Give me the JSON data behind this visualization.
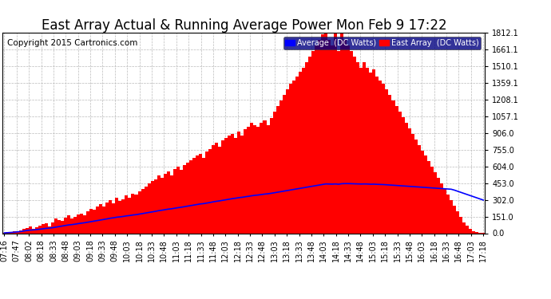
{
  "title": "East Array Actual & Running Average Power Mon Feb 9 17:22",
  "copyright": "Copyright 2015 Cartronics.com",
  "legend_labels": [
    "Average  (DC Watts)",
    "East Array  (DC Watts)"
  ],
  "legend_colors": [
    "#0000ff",
    "#ff0000"
  ],
  "legend_bg": "#000080",
  "ylabel_right_ticks": [
    0.0,
    151.0,
    302.0,
    453.0,
    604.0,
    755.0,
    906.0,
    1057.1,
    1208.1,
    1359.1,
    1510.1,
    1661.1,
    1812.1
  ],
  "ylim": [
    0.0,
    1812.1
  ],
  "bg_color": "#ffffff",
  "plot_bg_color": "#ffffff",
  "grid_color": "#bbbbbb",
  "bar_color": "#ff0000",
  "avg_color": "#0000ff",
  "x_tick_labels": [
    "07:16",
    "07:47",
    "08:02",
    "08:18",
    "08:33",
    "08:48",
    "09:03",
    "09:18",
    "09:33",
    "09:48",
    "10:03",
    "10:18",
    "10:33",
    "10:48",
    "11:03",
    "11:18",
    "11:33",
    "11:48",
    "12:03",
    "12:18",
    "12:33",
    "12:48",
    "13:03",
    "13:18",
    "13:33",
    "13:48",
    "14:03",
    "14:18",
    "14:33",
    "14:48",
    "15:03",
    "15:18",
    "15:33",
    "15:48",
    "16:03",
    "16:18",
    "16:33",
    "16:48",
    "17:03",
    "17:18"
  ],
  "east_array_values": [
    5,
    8,
    10,
    15,
    20,
    25,
    40,
    50,
    60,
    40,
    55,
    70,
    80,
    90,
    60,
    100,
    130,
    120,
    110,
    140,
    160,
    130,
    150,
    170,
    180,
    160,
    200,
    220,
    210,
    240,
    260,
    240,
    280,
    300,
    270,
    320,
    290,
    310,
    340,
    320,
    360,
    350,
    380,
    400,
    420,
    450,
    470,
    490,
    520,
    500,
    540,
    560,
    520,
    580,
    600,
    570,
    620,
    640,
    660,
    680,
    700,
    720,
    680,
    740,
    760,
    800,
    820,
    780,
    840,
    860,
    880,
    900,
    860,
    920,
    880,
    940,
    960,
    1000,
    980,
    960,
    1000,
    1020,
    980,
    1040,
    1100,
    1150,
    1200,
    1250,
    1300,
    1350,
    1380,
    1420,
    1460,
    1500,
    1550,
    1600,
    1650,
    1700,
    1750,
    1800,
    1812,
    1750,
    1700,
    1812,
    1650,
    1812,
    1750,
    1700,
    1650,
    1600,
    1550,
    1500,
    1550,
    1500,
    1450,
    1480,
    1420,
    1380,
    1350,
    1300,
    1250,
    1200,
    1150,
    1100,
    1050,
    1000,
    950,
    900,
    850,
    800,
    750,
    700,
    650,
    600,
    550,
    500,
    450,
    400,
    350,
    300,
    250,
    200,
    150,
    100,
    70,
    40,
    20,
    10,
    5,
    2
  ],
  "avg_values": [
    3,
    5,
    7,
    9,
    12,
    15,
    20,
    25,
    28,
    30,
    33,
    36,
    40,
    44,
    46,
    50,
    55,
    60,
    65,
    70,
    75,
    78,
    82,
    87,
    91,
    95,
    100,
    105,
    110,
    115,
    120,
    125,
    130,
    136,
    140,
    145,
    148,
    152,
    157,
    160,
    165,
    168,
    173,
    178,
    183,
    188,
    193,
    198,
    204,
    208,
    213,
    218,
    221,
    226,
    231,
    235,
    240,
    245,
    250,
    255,
    260,
    265,
    268,
    273,
    278,
    284,
    289,
    293,
    298,
    303,
    308,
    313,
    317,
    322,
    325,
    330,
    334,
    339,
    343,
    346,
    350,
    354,
    357,
    361,
    366,
    371,
    376,
    381,
    386,
    391,
    396,
    401,
    406,
    411,
    416,
    421,
    426,
    431,
    436,
    441,
    446,
    445,
    444,
    446,
    443,
    448,
    449,
    449,
    448,
    447,
    446,
    445,
    446,
    445,
    443,
    444,
    442,
    441,
    440,
    438,
    436,
    434,
    432,
    430,
    428,
    426,
    424,
    422,
    420,
    418,
    416,
    414,
    412,
    410,
    408,
    406,
    404,
    402,
    400,
    398,
    390,
    380,
    370,
    360,
    350,
    340,
    330,
    320,
    310,
    300
  ],
  "tick_fontsize": 7,
  "title_fontsize": 12,
  "copyright_fontsize": 7.5
}
